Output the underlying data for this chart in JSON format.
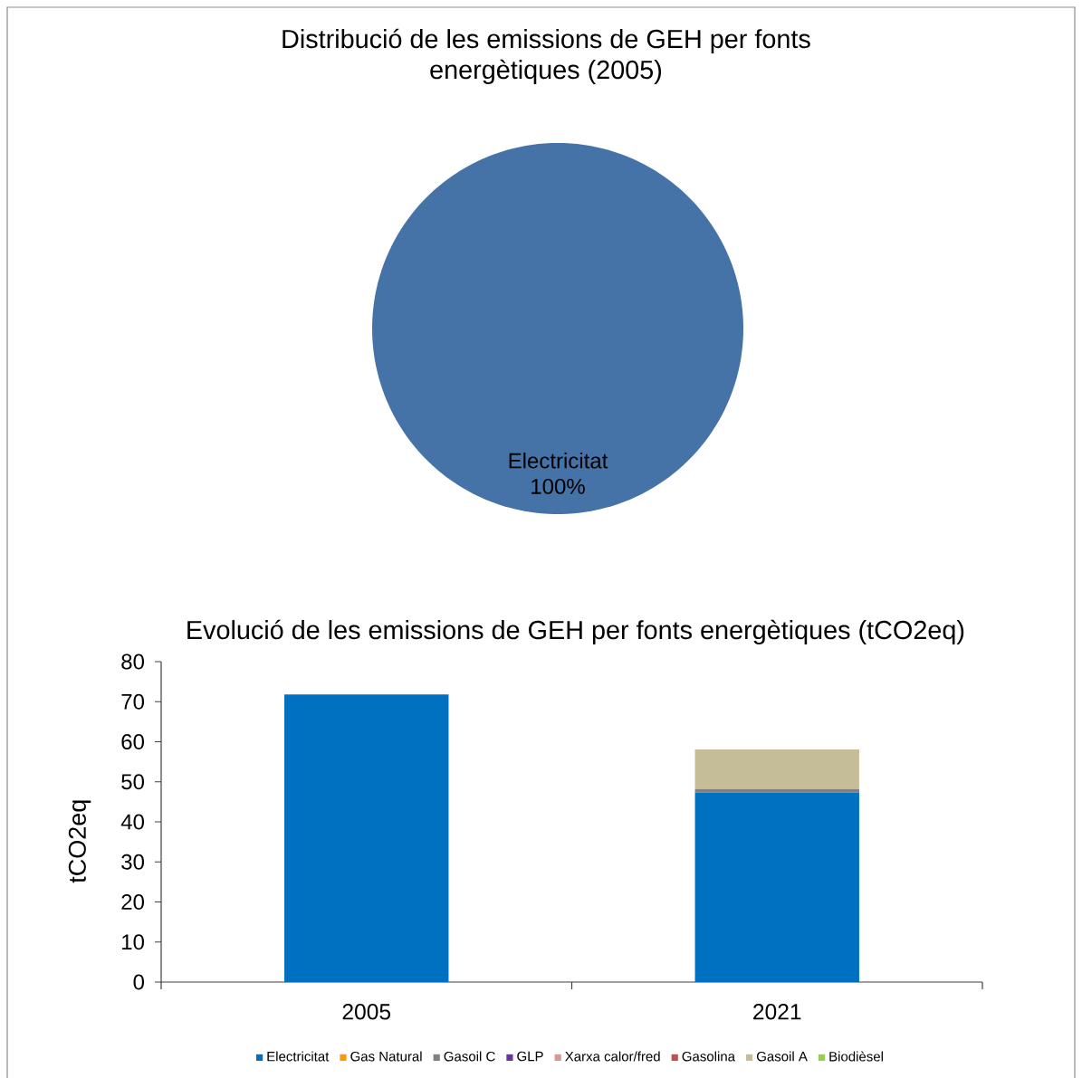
{
  "chart_data": [
    {
      "type": "pie",
      "title": "Distribució de les emissions de GEH per fonts energètiques (2005)",
      "categories": [
        "Electricitat"
      ],
      "values": [
        100
      ],
      "colors": [
        "#4572a7"
      ],
      "value_labels": [
        "100%"
      ]
    },
    {
      "type": "bar",
      "title": "Evolució de les emissions de GEH per fonts energètiques (tCO2eq)",
      "ylabel": "tCO2eq",
      "categories": [
        "2005",
        "2021"
      ],
      "stacked": true,
      "series": [
        {
          "name": "Electricitat",
          "color": "#0070c0",
          "values": [
            71.8,
            47.3
          ]
        },
        {
          "name": "Gas Natural",
          "color": "#ff9900",
          "values": [
            0,
            0
          ]
        },
        {
          "name": "Gasoil C",
          "color": "#808080",
          "values": [
            0,
            0.9
          ]
        },
        {
          "name": "GLP",
          "color": "#7030a0",
          "values": [
            0,
            0
          ]
        },
        {
          "name": "Xarxa calor/fred",
          "color": "#d99694",
          "values": [
            0,
            0
          ]
        },
        {
          "name": "Gasolina",
          "color": "#c0504d",
          "values": [
            0,
            0
          ]
        },
        {
          "name": "Gasoil A",
          "color": "#c4bd97",
          "values": [
            0,
            9.9
          ]
        },
        {
          "name": "Biodièsel",
          "color": "#92d050",
          "values": [
            0,
            0
          ]
        }
      ],
      "ylim": [
        0,
        80
      ],
      "yticks": [
        0,
        10,
        20,
        30,
        40,
        50,
        60,
        70,
        80
      ],
      "legend": "bottom"
    }
  ]
}
